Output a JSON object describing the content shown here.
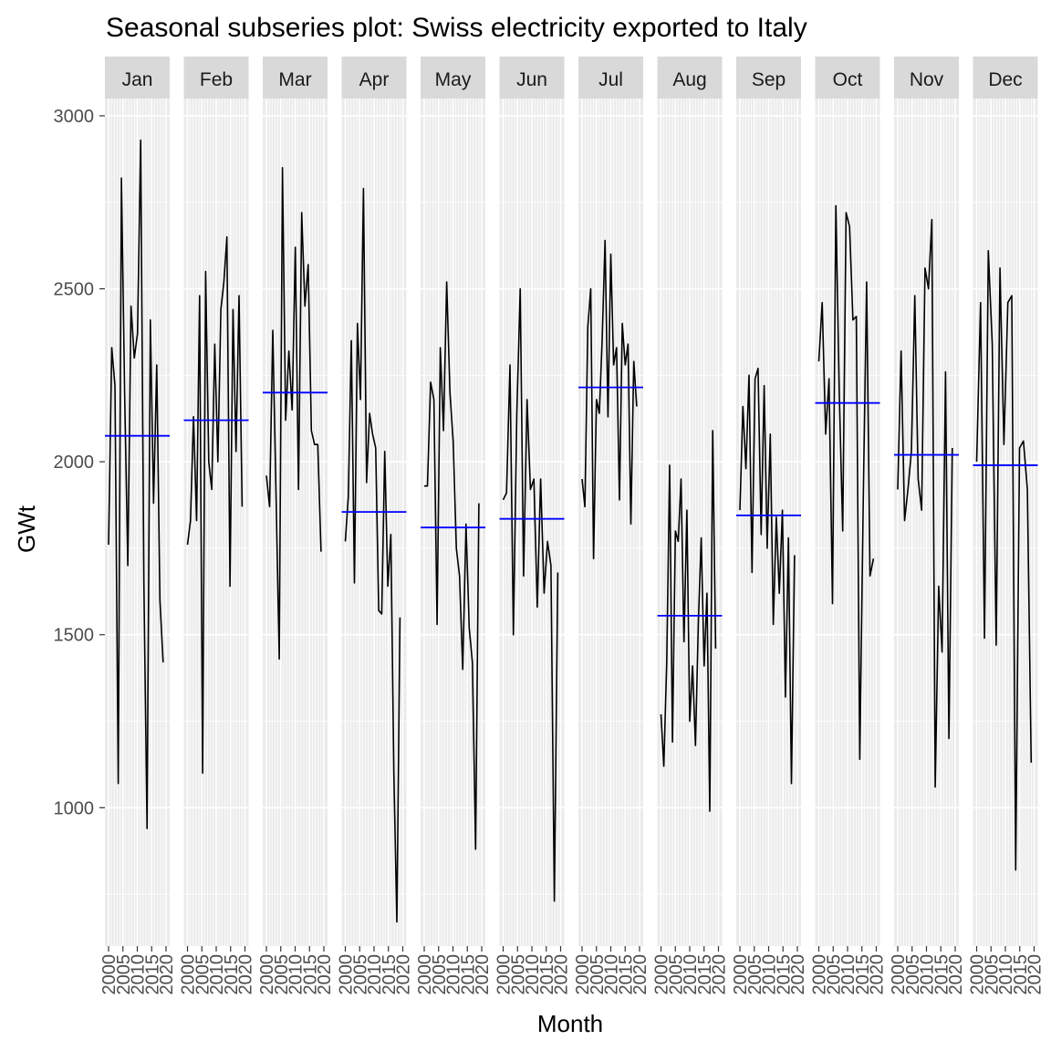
{
  "chart_data": {
    "type": "line",
    "title": "Seasonal subseries plot: Swiss electricity exported to Italy",
    "xlabel": "Month",
    "ylabel": "GWt",
    "ylim": [
      600,
      3050
    ],
    "yticks": [
      1000,
      1500,
      2000,
      2500,
      3000
    ],
    "panel_xticks": [
      "2000",
      "2005",
      "2010",
      "2015",
      "2020"
    ],
    "year_range": [
      2000,
      2019
    ],
    "colors": {
      "panel_bg": "#ebebeb",
      "grid": "#ffffff",
      "strip_bg": "#d9d9d9",
      "line": "#000000",
      "mean_line": "#0000ff",
      "axis_text": "#4d4d4d"
    },
    "panels": [
      {
        "month": "Jan",
        "mean": 2075,
        "values": [
          1760,
          2330,
          2220,
          1070,
          2820,
          2200,
          1700,
          2450,
          2300,
          2370,
          2930,
          1650,
          940,
          2410,
          1880,
          2280,
          1600,
          1420
        ]
      },
      {
        "month": "Feb",
        "mean": 2120,
        "values": [
          1760,
          1830,
          2130,
          1830,
          2480,
          1100,
          2550,
          2000,
          1920,
          2340,
          2000,
          2440,
          2520,
          2650,
          1640,
          2440,
          2030,
          2480,
          1870
        ]
      },
      {
        "month": "Mar",
        "mean": 2200,
        "values": [
          1960,
          1870,
          2380,
          1900,
          1430,
          2850,
          2120,
          2320,
          2150,
          2620,
          1920,
          2720,
          2450,
          2570,
          2090,
          2050,
          2050,
          1740
        ]
      },
      {
        "month": "Apr",
        "mean": 1855,
        "values": [
          1770,
          1900,
          2350,
          1650,
          2400,
          2180,
          2790,
          1940,
          2140,
          2080,
          2040,
          1570,
          1560,
          2030,
          1640,
          1790,
          1100,
          670,
          1550
        ]
      },
      {
        "month": "May",
        "mean": 1810,
        "values": [
          1930,
          1930,
          2230,
          2180,
          1530,
          2330,
          2090,
          2520,
          2200,
          2060,
          1750,
          1670,
          1400,
          1820,
          1520,
          1420,
          880,
          1880
        ]
      },
      {
        "month": "Jun",
        "mean": 1835,
        "values": [
          1890,
          1910,
          2280,
          1500,
          2140,
          2500,
          1670,
          2180,
          1920,
          1950,
          1580,
          1950,
          1620,
          1770,
          1700,
          730,
          1680
        ]
      },
      {
        "month": "Jul",
        "mean": 2215,
        "values": [
          1950,
          1870,
          2390,
          2500,
          1720,
          2180,
          2140,
          2350,
          2640,
          2130,
          2600,
          2280,
          2330,
          1890,
          2400,
          2280,
          2340,
          1820,
          2290,
          2160
        ]
      },
      {
        "month": "Aug",
        "mean": 1555,
        "values": [
          1270,
          1120,
          1420,
          1990,
          1190,
          1800,
          1770,
          1950,
          1480,
          1860,
          1250,
          1410,
          1180,
          1540,
          1780,
          1410,
          1620,
          990,
          2090,
          1460
        ]
      },
      {
        "month": "Sep",
        "mean": 1845,
        "values": [
          1860,
          2160,
          1980,
          2250,
          1680,
          2240,
          2270,
          1790,
          2220,
          1750,
          2080,
          1530,
          1840,
          1620,
          1860,
          1320,
          1780,
          1070,
          1730
        ]
      },
      {
        "month": "Oct",
        "mean": 2170,
        "values": [
          2290,
          2460,
          2080,
          2240,
          1590,
          2740,
          2200,
          1800,
          2720,
          2680,
          2410,
          2420,
          1140,
          1870,
          2520,
          1670,
          1720
        ]
      },
      {
        "month": "Nov",
        "mean": 2020,
        "values": [
          1920,
          2320,
          1830,
          1920,
          2030,
          2480,
          1950,
          1860,
          2560,
          2500,
          2700,
          1060,
          1640,
          1450,
          2260,
          1200,
          2040
        ]
      },
      {
        "month": "Dec",
        "mean": 1990,
        "values": [
          2000,
          2460,
          1490,
          2610,
          2340,
          1470,
          2560,
          2050,
          2460,
          2480,
          820,
          2040,
          2060,
          1920,
          1130
        ]
      }
    ]
  }
}
